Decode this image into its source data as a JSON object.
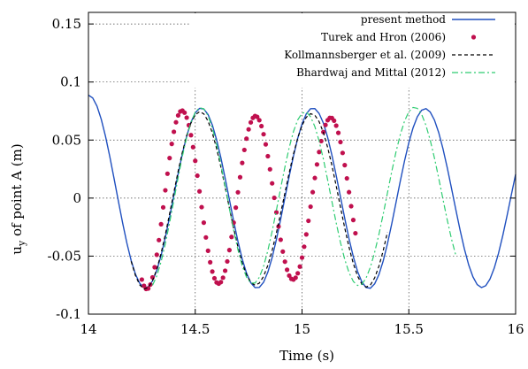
{
  "chart_data": {
    "type": "line",
    "xlabel": "Time (s)",
    "ylabel": "u",
    "ylabel_sub": "y",
    "ylabel_rest": " of point A (m)",
    "xlim": [
      14,
      16
    ],
    "ylim": [
      -0.1,
      0.16
    ],
    "xticks": [
      14,
      14.5,
      15,
      15.5,
      16
    ],
    "xtick_labels": [
      "14",
      "14.5",
      "15",
      "15.5",
      "16"
    ],
    "yticks": [
      -0.1,
      -0.05,
      0,
      0.05,
      0.1,
      0.15
    ],
    "ytick_labels": [
      "-0.1",
      "-0.05",
      "0",
      "0.05",
      "0.1",
      "0.15"
    ],
    "grid": true,
    "legend_position": "top-right",
    "series": [
      {
        "name": "present method",
        "style": "line",
        "color": "#1f4fbf",
        "x": [
          14.0,
          14.02,
          14.04,
          14.06,
          14.08,
          14.1,
          14.12,
          14.14,
          14.16,
          14.18,
          14.2,
          14.22,
          14.24,
          14.26,
          14.28,
          14.3,
          14.32,
          14.34,
          14.36,
          14.38,
          14.4,
          14.42,
          14.44,
          14.46,
          14.48,
          14.5,
          14.52,
          14.54,
          14.56,
          14.58,
          14.6,
          14.62,
          14.64,
          14.66,
          14.68,
          14.7,
          14.72,
          14.74,
          14.76,
          14.78,
          14.8,
          14.82,
          14.84,
          14.86,
          14.88,
          14.9,
          14.92,
          14.94,
          14.96,
          14.98,
          15.0,
          15.02,
          15.04,
          15.06,
          15.08,
          15.1,
          15.12,
          15.14,
          15.16,
          15.18,
          15.2,
          15.22,
          15.24,
          15.26,
          15.28,
          15.3,
          15.32,
          15.34,
          15.36,
          15.38,
          15.4,
          15.42,
          15.44,
          15.46,
          15.48,
          15.5,
          15.52,
          15.54,
          15.56,
          15.58,
          15.6,
          15.62,
          15.64,
          15.66,
          15.68,
          15.7,
          15.72,
          15.74,
          15.76,
          15.78,
          15.8,
          15.82,
          15.84,
          15.86,
          15.88,
          15.9,
          15.92,
          15.94,
          15.96,
          15.98,
          16.0
        ],
        "y": [
          0.0887,
          0.0863,
          0.0792,
          0.0679,
          0.0531,
          0.0357,
          0.0168,
          -0.0025,
          -0.0214,
          -0.0388,
          -0.0538,
          -0.0655,
          -0.0734,
          -0.0771,
          -0.0764,
          -0.0714,
          -0.0623,
          -0.0496,
          -0.0339,
          -0.0162,
          0.0025,
          0.021,
          0.0383,
          0.0534,
          0.0653,
          0.0734,
          0.0773,
          0.0768,
          0.072,
          0.063,
          0.0503,
          0.0348,
          0.0172,
          -0.0014,
          -0.0199,
          -0.0373,
          -0.0525,
          -0.0646,
          -0.073,
          -0.0772,
          -0.077,
          -0.0725,
          -0.0638,
          -0.0513,
          -0.0357,
          -0.0182,
          0.0004,
          0.0189,
          0.0363,
          0.0516,
          0.064,
          0.0726,
          0.077,
          0.0771,
          0.0729,
          0.0646,
          0.0523,
          0.0369,
          0.0194,
          0.001,
          -0.0175,
          -0.035,
          -0.0505,
          -0.0632,
          -0.0722,
          -0.0771,
          -0.0777,
          -0.0739,
          -0.0659,
          -0.0542,
          -0.0393,
          -0.0222,
          -0.0038,
          0.0146,
          0.0321,
          0.0477,
          0.0606,
          0.0701,
          0.0757,
          0.0771,
          0.0742,
          0.0672,
          0.0564,
          0.0424,
          0.0261,
          0.0083,
          -0.0099,
          -0.0276,
          -0.0437,
          -0.0574,
          -0.0678,
          -0.0745,
          -0.0771,
          -0.0755,
          -0.0698,
          -0.0603,
          -0.0475,
          -0.0322,
          -0.0151,
          0.0028,
          0.0205
        ]
      },
      {
        "name": "Turek and Hron (2006)",
        "style": "dots",
        "color": "#c0104e",
        "x": [
          14.25,
          14.26,
          14.27,
          14.28,
          14.29,
          14.3,
          14.31,
          14.32,
          14.33,
          14.34,
          14.35,
          14.36,
          14.37,
          14.38,
          14.39,
          14.4,
          14.41,
          14.42,
          14.43,
          14.44,
          14.45,
          14.46,
          14.47,
          14.48,
          14.49,
          14.5,
          14.51,
          14.52,
          14.53,
          14.54,
          14.55,
          14.56,
          14.57,
          14.58,
          14.59,
          14.6,
          14.61,
          14.62,
          14.63,
          14.64,
          14.65,
          14.66,
          14.67,
          14.68,
          14.69,
          14.7,
          14.71,
          14.72,
          14.73,
          14.74,
          14.75,
          14.76,
          14.77,
          14.78,
          14.79,
          14.8,
          14.81,
          14.82,
          14.83,
          14.84,
          14.85,
          14.86,
          14.87,
          14.88,
          14.89,
          14.9,
          14.91,
          14.92,
          14.93,
          14.94,
          14.95,
          14.96,
          14.97,
          14.98,
          14.99,
          15.0,
          15.01,
          15.02,
          15.03,
          15.04,
          15.05,
          15.06,
          15.07,
          15.08,
          15.09,
          15.1,
          15.11,
          15.12,
          15.13,
          15.14,
          15.15,
          15.16,
          15.17,
          15.18,
          15.19,
          15.2,
          15.21,
          15.22,
          15.23,
          15.24,
          15.25
        ],
        "y": [
          -0.0702,
          -0.0756,
          -0.0783,
          -0.0779,
          -0.0745,
          -0.0683,
          -0.0596,
          -0.0488,
          -0.0362,
          -0.0225,
          -0.008,
          0.0067,
          0.021,
          0.0345,
          0.0467,
          0.0571,
          0.0653,
          0.0712,
          0.0746,
          0.0754,
          0.0736,
          0.0693,
          0.0628,
          0.0542,
          0.0439,
          0.0321,
          0.0193,
          0.0058,
          -0.0078,
          -0.0212,
          -0.0339,
          -0.0454,
          -0.0553,
          -0.0633,
          -0.0691,
          -0.0727,
          -0.0737,
          -0.0724,
          -0.0686,
          -0.0626,
          -0.0546,
          -0.0448,
          -0.0335,
          -0.0212,
          -0.0082,
          0.005,
          0.018,
          0.0303,
          0.0415,
          0.0512,
          0.0592,
          0.0652,
          0.0691,
          0.0707,
          0.07,
          0.0671,
          0.062,
          0.055,
          0.0463,
          0.0361,
          0.0248,
          0.0127,
          0.0002,
          -0.0123,
          -0.0245,
          -0.0359,
          -0.0461,
          -0.0548,
          -0.0618,
          -0.0668,
          -0.0696,
          -0.0702,
          -0.0686,
          -0.0648,
          -0.059,
          -0.0513,
          -0.0419,
          -0.0313,
          -0.0196,
          -0.0074,
          0.0051,
          0.0173,
          0.029,
          0.0397,
          0.0491,
          0.0569,
          0.063,
          0.0671,
          0.0691,
          0.069,
          0.0667,
          0.0624,
          0.0562,
          0.0483,
          0.0389,
          0.0284,
          0.017,
          0.0051,
          -0.007,
          -0.0189,
          -0.0303
        ]
      },
      {
        "name": "Kollmannsberger et al. (2009)",
        "style": "dashed",
        "color": "#000000",
        "x": [
          14.2,
          14.22,
          14.24,
          14.26,
          14.28,
          14.3,
          14.32,
          14.34,
          14.36,
          14.38,
          14.4,
          14.42,
          14.44,
          14.46,
          14.48,
          14.5,
          14.52,
          14.54,
          14.56,
          14.58,
          14.6,
          14.62,
          14.64,
          14.66,
          14.68,
          14.7,
          14.72,
          14.74,
          14.76,
          14.78,
          14.8,
          14.82,
          14.84,
          14.86,
          14.88,
          14.9,
          14.92,
          14.94,
          14.96,
          14.98,
          15.0,
          15.02,
          15.04,
          15.06,
          15.08,
          15.1,
          15.12,
          15.14,
          15.16,
          15.18,
          15.2,
          15.22,
          15.24,
          15.26,
          15.28,
          15.3,
          15.32,
          15.34,
          15.36,
          15.38,
          15.4
        ],
        "y": [
          -0.0545,
          -0.0667,
          -0.0748,
          -0.0783,
          -0.0771,
          -0.0713,
          -0.0613,
          -0.0477,
          -0.0315,
          -0.0135,
          0.005,
          0.0231,
          0.0397,
          0.0538,
          0.0647,
          0.0717,
          0.0744,
          0.0726,
          0.0664,
          0.0562,
          0.0428,
          0.0269,
          0.0094,
          -0.0086,
          -0.0262,
          -0.0422,
          -0.0558,
          -0.0661,
          -0.0727,
          -0.0751,
          -0.0733,
          -0.0675,
          -0.0579,
          -0.0452,
          -0.03,
          -0.0131,
          0.0045,
          0.0219,
          0.038,
          0.0518,
          0.0626,
          0.0697,
          0.0727,
          0.0714,
          0.0659,
          0.0564,
          0.0436,
          0.028,
          0.0105,
          -0.0078,
          -0.0258,
          -0.0423,
          -0.0564,
          -0.0672,
          -0.0741,
          -0.0767,
          -0.0749,
          -0.0688,
          -0.0587,
          -0.0453,
          -0.0293
        ]
      },
      {
        "name": "Bhardwaj and Mittal (2012)",
        "style": "dashdot",
        "color": "#2ecc71",
        "x": [
          14.3,
          14.32,
          14.34,
          14.36,
          14.38,
          14.4,
          14.42,
          14.44,
          14.46,
          14.48,
          14.5,
          14.52,
          14.54,
          14.56,
          14.58,
          14.6,
          14.62,
          14.64,
          14.66,
          14.68,
          14.7,
          14.72,
          14.74,
          14.76,
          14.78,
          14.8,
          14.82,
          14.84,
          14.86,
          14.88,
          14.9,
          14.92,
          14.94,
          14.96,
          14.98,
          15.0,
          15.02,
          15.04,
          15.06,
          15.08,
          15.1,
          15.12,
          15.14,
          15.16,
          15.18,
          15.2,
          15.22,
          15.24,
          15.26,
          15.28,
          15.3,
          15.32,
          15.34,
          15.36,
          15.38,
          15.4,
          15.42,
          15.44,
          15.46,
          15.48,
          15.5,
          15.52,
          15.54,
          15.56,
          15.58,
          15.6,
          15.62,
          15.64,
          15.66,
          15.68,
          15.7,
          15.72
        ],
        "y": [
          -0.0751,
          -0.0671,
          -0.0549,
          -0.0393,
          -0.0213,
          -0.0018,
          0.0177,
          0.0362,
          0.0524,
          0.0652,
          0.0739,
          0.0779,
          0.0769,
          0.071,
          0.0605,
          0.0462,
          0.029,
          0.0102,
          -0.0091,
          -0.0278,
          -0.0446,
          -0.0584,
          -0.0681,
          -0.0732,
          -0.0732,
          -0.0683,
          -0.0587,
          -0.0452,
          -0.0287,
          -0.0104,
          0.0085,
          0.0269,
          0.0436,
          0.0574,
          0.0674,
          0.0731,
          0.0741,
          0.0701,
          0.0616,
          0.0492,
          0.0335,
          0.0156,
          -0.0031,
          -0.0214,
          -0.0383,
          -0.0528,
          -0.0642,
          -0.0718,
          -0.0753,
          -0.0743,
          -0.0689,
          -0.0595,
          -0.0467,
          -0.0313,
          -0.0139,
          0.0045,
          0.0228,
          0.0398,
          0.0546,
          0.0664,
          0.0744,
          0.0781,
          0.0773,
          0.0721,
          0.0628,
          0.05,
          0.0345,
          0.0171,
          -0.0011,
          -0.019,
          -0.0354,
          -0.0494
        ]
      }
    ]
  }
}
